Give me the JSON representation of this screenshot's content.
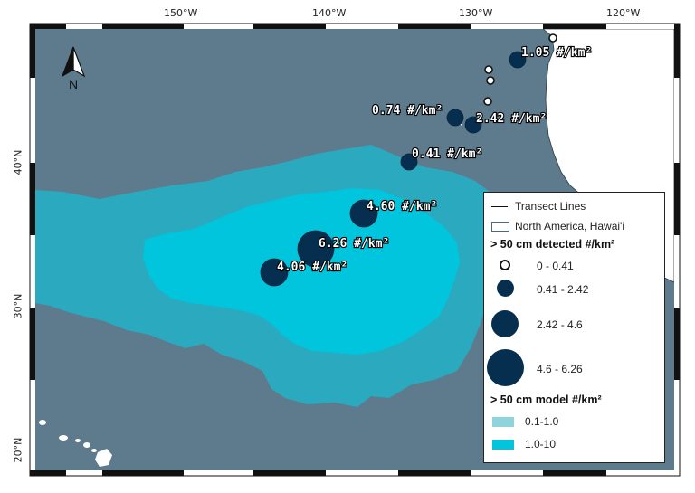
{
  "axes": {
    "lon_ticks": [
      "150°W",
      "140°W",
      "130°W",
      "120°W"
    ],
    "lat_ticks": [
      "40°N",
      "30°N",
      "20°N"
    ]
  },
  "colors": {
    "ocean": "#5e7a8d",
    "land": "#ffffff",
    "model_low": "#8fd3dc",
    "model_high": "#00c5dd",
    "model_mid": "#2aa9bf",
    "detected": "#062f4f"
  },
  "north_arrow": {
    "label": "N",
    "icon": "north-arrow-icon"
  },
  "detections": [
    {
      "label": "1.05 #/km²",
      "value": 1.05,
      "size_class": "0.41 - 2.42"
    },
    {
      "label": "0.74 #/km²",
      "value": 0.74,
      "size_class": "0.41 - 2.42"
    },
    {
      "label": "2.42 #/km²",
      "value": 2.42,
      "size_class": "0.41 - 2.42"
    },
    {
      "label": "0.41 #/km²",
      "value": 0.41,
      "size_class": "0.41 - 2.42"
    },
    {
      "label": "4.60 #/km²",
      "value": 4.6,
      "size_class": "2.42 - 4.6"
    },
    {
      "label": "6.26 #/km²",
      "value": 6.26,
      "size_class": "4.6 - 6.26"
    },
    {
      "label": "4.06 #/km²",
      "value": 4.06,
      "size_class": "2.42 - 4.6"
    }
  ],
  "legend": {
    "transect_label": "Transect Lines",
    "land_label": "North America, Hawai'i",
    "detected_title": "> 50 cm detected #/km²",
    "detected_classes": [
      "0 - 0.41",
      "0.41 - 2.42",
      "2.42 - 4.6",
      "4.6 - 6.26"
    ],
    "model_title": "> 50 cm model #/km²",
    "model_classes": [
      "0.1-1.0",
      "1.0-10"
    ]
  }
}
